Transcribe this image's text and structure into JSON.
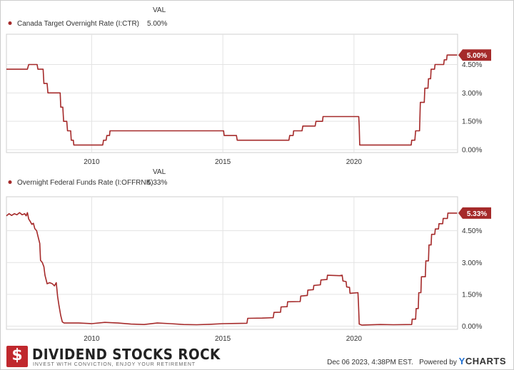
{
  "chart_data": [
    {
      "type": "line",
      "column_header": "VAL",
      "series": [
        {
          "name": "Canada Target Overnight Rate (I:CTR)",
          "latest_value": "5.00%",
          "color": "#a52a2a",
          "points": [
            [
              2006.75,
              4.25
            ],
            [
              2007.55,
              4.25
            ],
            [
              2007.6,
              4.5
            ],
            [
              2007.92,
              4.5
            ],
            [
              2007.95,
              4.25
            ],
            [
              2008.15,
              4.25
            ],
            [
              2008.18,
              3.5
            ],
            [
              2008.3,
              3.5
            ],
            [
              2008.33,
              3.0
            ],
            [
              2008.8,
              3.0
            ],
            [
              2008.82,
              2.25
            ],
            [
              2008.9,
              2.25
            ],
            [
              2008.93,
              1.5
            ],
            [
              2009.05,
              1.5
            ],
            [
              2009.08,
              1.0
            ],
            [
              2009.2,
              1.0
            ],
            [
              2009.22,
              0.5
            ],
            [
              2009.3,
              0.5
            ],
            [
              2009.32,
              0.25
            ],
            [
              2010.42,
              0.25
            ],
            [
              2010.45,
              0.5
            ],
            [
              2010.55,
              0.5
            ],
            [
              2010.58,
              0.75
            ],
            [
              2010.68,
              0.75
            ],
            [
              2010.7,
              1.0
            ],
            [
              2015.03,
              1.0
            ],
            [
              2015.05,
              0.75
            ],
            [
              2015.52,
              0.75
            ],
            [
              2015.55,
              0.5
            ],
            [
              2017.52,
              0.5
            ],
            [
              2017.55,
              0.75
            ],
            [
              2017.68,
              0.75
            ],
            [
              2017.7,
              1.0
            ],
            [
              2018.02,
              1.0
            ],
            [
              2018.05,
              1.25
            ],
            [
              2018.52,
              1.25
            ],
            [
              2018.55,
              1.5
            ],
            [
              2018.8,
              1.5
            ],
            [
              2018.82,
              1.75
            ],
            [
              2020.18,
              1.75
            ],
            [
              2020.2,
              1.25
            ],
            [
              2020.22,
              0.25
            ],
            [
              2022.18,
              0.25
            ],
            [
              2022.2,
              0.5
            ],
            [
              2022.32,
              0.5
            ],
            [
              2022.35,
              1.0
            ],
            [
              2022.5,
              1.0
            ],
            [
              2022.53,
              2.5
            ],
            [
              2022.68,
              2.5
            ],
            [
              2022.7,
              3.25
            ],
            [
              2022.82,
              3.25
            ],
            [
              2022.84,
              3.75
            ],
            [
              2022.92,
              3.75
            ],
            [
              2022.94,
              4.25
            ],
            [
              2023.07,
              4.25
            ],
            [
              2023.09,
              4.5
            ],
            [
              2023.42,
              4.5
            ],
            [
              2023.44,
              4.75
            ],
            [
              2023.53,
              4.75
            ],
            [
              2023.55,
              5.0
            ],
            [
              2023.93,
              5.0
            ]
          ]
        }
      ],
      "x_ticks": [
        "2010",
        "2015",
        "2020"
      ],
      "y_ticks": [
        "0.00%",
        "1.50%",
        "3.00%",
        "4.50%"
      ],
      "xlim": [
        2006.75,
        2023.95
      ],
      "ylim": [
        -0.15,
        6.1
      ],
      "grid": true
    },
    {
      "type": "line",
      "column_header": "VAL",
      "series": [
        {
          "name": "Overnight Federal Funds Rate (I:OFFRNK)",
          "latest_value": "5.33%",
          "color": "#a52a2a",
          "points": [
            [
              2006.75,
              5.2
            ],
            [
              2006.85,
              5.3
            ],
            [
              2006.95,
              5.22
            ],
            [
              2007.05,
              5.3
            ],
            [
              2007.15,
              5.25
            ],
            [
              2007.25,
              5.35
            ],
            [
              2007.35,
              5.25
            ],
            [
              2007.45,
              5.3
            ],
            [
              2007.5,
              5.2
            ],
            [
              2007.55,
              5.35
            ],
            [
              2007.6,
              5.05
            ],
            [
              2007.65,
              4.95
            ],
            [
              2007.72,
              4.8
            ],
            [
              2007.78,
              4.85
            ],
            [
              2007.83,
              4.6
            ],
            [
              2007.9,
              4.5
            ],
            [
              2007.95,
              4.25
            ],
            [
              2008.02,
              3.9
            ],
            [
              2008.05,
              3.1
            ],
            [
              2008.12,
              3.0
            ],
            [
              2008.18,
              2.8
            ],
            [
              2008.22,
              2.4
            ],
            [
              2008.3,
              2.0
            ],
            [
              2008.4,
              2.05
            ],
            [
              2008.5,
              2.0
            ],
            [
              2008.58,
              1.9
            ],
            [
              2008.65,
              2.05
            ],
            [
              2008.7,
              1.4
            ],
            [
              2008.75,
              1.0
            ],
            [
              2008.82,
              0.5
            ],
            [
              2008.88,
              0.2
            ],
            [
              2008.95,
              0.15
            ],
            [
              2009.5,
              0.15
            ],
            [
              2010.0,
              0.12
            ],
            [
              2010.5,
              0.18
            ],
            [
              2011.0,
              0.15
            ],
            [
              2011.5,
              0.1
            ],
            [
              2012.0,
              0.08
            ],
            [
              2012.5,
              0.15
            ],
            [
              2013.0,
              0.12
            ],
            [
              2013.5,
              0.08
            ],
            [
              2014.0,
              0.07
            ],
            [
              2014.5,
              0.09
            ],
            [
              2015.0,
              0.12
            ],
            [
              2015.5,
              0.13
            ],
            [
              2015.92,
              0.14
            ],
            [
              2015.95,
              0.37
            ],
            [
              2016.5,
              0.38
            ],
            [
              2016.92,
              0.4
            ],
            [
              2016.95,
              0.65
            ],
            [
              2017.2,
              0.66
            ],
            [
              2017.22,
              0.91
            ],
            [
              2017.45,
              0.92
            ],
            [
              2017.47,
              1.15
            ],
            [
              2017.95,
              1.16
            ],
            [
              2017.97,
              1.42
            ],
            [
              2018.22,
              1.45
            ],
            [
              2018.24,
              1.7
            ],
            [
              2018.45,
              1.72
            ],
            [
              2018.47,
              1.92
            ],
            [
              2018.72,
              1.95
            ],
            [
              2018.74,
              2.18
            ],
            [
              2018.97,
              2.2
            ],
            [
              2018.99,
              2.4
            ],
            [
              2019.45,
              2.38
            ],
            [
              2019.55,
              2.4
            ],
            [
              2019.58,
              2.13
            ],
            [
              2019.7,
              2.1
            ],
            [
              2019.72,
              1.85
            ],
            [
              2019.83,
              1.83
            ],
            [
              2019.85,
              1.55
            ],
            [
              2020.15,
              1.58
            ],
            [
              2020.17,
              1.1
            ],
            [
              2020.2,
              0.1
            ],
            [
              2020.3,
              0.05
            ],
            [
              2021.0,
              0.08
            ],
            [
              2021.5,
              0.07
            ],
            [
              2022.2,
              0.08
            ],
            [
              2022.22,
              0.33
            ],
            [
              2022.35,
              0.33
            ],
            [
              2022.37,
              0.83
            ],
            [
              2022.45,
              0.83
            ],
            [
              2022.47,
              1.58
            ],
            [
              2022.55,
              1.58
            ],
            [
              2022.57,
              2.33
            ],
            [
              2022.72,
              2.33
            ],
            [
              2022.74,
              3.08
            ],
            [
              2022.84,
              3.08
            ],
            [
              2022.86,
              3.83
            ],
            [
              2022.94,
              3.83
            ],
            [
              2022.96,
              4.33
            ],
            [
              2023.08,
              4.33
            ],
            [
              2023.1,
              4.58
            ],
            [
              2023.22,
              4.58
            ],
            [
              2023.24,
              4.83
            ],
            [
              2023.38,
              4.83
            ],
            [
              2023.4,
              5.08
            ],
            [
              2023.56,
              5.08
            ],
            [
              2023.58,
              5.33
            ],
            [
              2023.93,
              5.33
            ]
          ]
        }
      ],
      "x_ticks": [
        "2010",
        "2015",
        "2020"
      ],
      "y_ticks": [
        "0.00%",
        "1.50%",
        "3.00%",
        "4.50%"
      ],
      "xlim": [
        2006.75,
        2023.95
      ],
      "ylim": [
        -0.15,
        6.1
      ],
      "grid": true
    }
  ],
  "footer": {
    "logo_badge": "$",
    "logo_title": "DIVIDEND STOCKS ROCK",
    "logo_tagline": "INVEST WITH CONVICTION, ENJOY YOUR RETIREMENT",
    "timestamp": "Dec 06 2023, 4:38PM EST.",
    "powered_by": "Powered by",
    "brand_mark": "Y",
    "brand_rest": "CHARTS"
  }
}
